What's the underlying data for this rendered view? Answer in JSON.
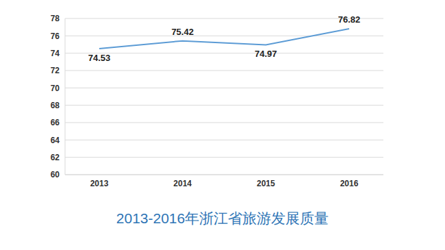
{
  "chart_data": {
    "type": "line",
    "title": "2013-2016年浙江省旅游发展质量",
    "categories": [
      "2013",
      "2014",
      "2015",
      "2016"
    ],
    "values": [
      74.53,
      75.42,
      74.97,
      76.82
    ],
    "color": "#5b9bd5",
    "ylim": [
      60,
      78
    ],
    "yticks": [
      60,
      62,
      64,
      66,
      68,
      70,
      72,
      74,
      76,
      78
    ],
    "grid": true,
    "data_labels": true,
    "marker": "none"
  }
}
